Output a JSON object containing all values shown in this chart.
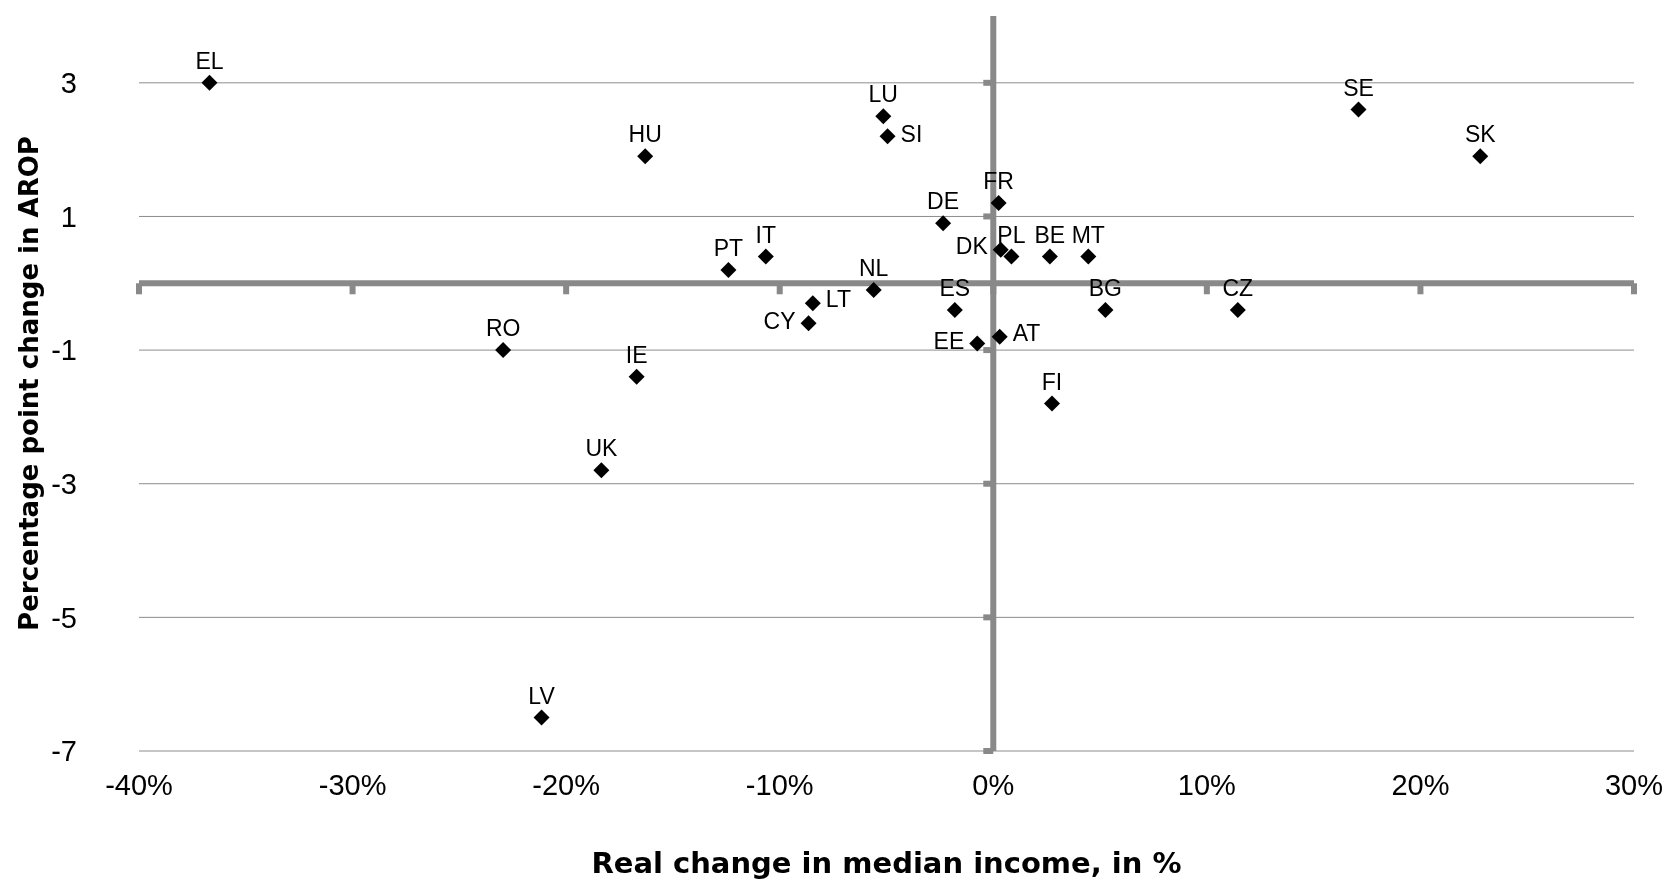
{
  "chart_data": {
    "type": "scatter",
    "xlabel": "Real change in median income, in %",
    "ylabel": "Percentage point change in AROP",
    "xlim": [
      -40,
      30
    ],
    "xticks": [
      {
        "value": -40,
        "label": "-40%"
      },
      {
        "value": -30,
        "label": "-30%"
      },
      {
        "value": -20,
        "label": "-20%"
      },
      {
        "value": -10,
        "label": "-10%"
      },
      {
        "value": 0,
        "label": "0%"
      },
      {
        "value": 10,
        "label": "10%"
      },
      {
        "value": 20,
        "label": "20%"
      },
      {
        "value": 30,
        "label": "30%"
      }
    ],
    "ylim": [
      -7,
      4
    ],
    "yticks": [
      3,
      1,
      -1,
      -3,
      -5,
      -7
    ],
    "grid": "y",
    "marker": "diamond",
    "series": [
      {
        "color": "#000000",
        "x": [
          -36.7,
          -16.3,
          -5.15,
          -4.95,
          -2.35,
          0.25,
          0.35,
          0.85,
          2.65,
          4.45,
          -12.4,
          -10.65,
          -5.6,
          -8.45,
          -8.65,
          -1.8,
          -0.75,
          0.3,
          5.25,
          11.45,
          2.75,
          -22.95,
          -16.7,
          -18.35,
          -21.15,
          17.1,
          22.8
        ],
        "values": [
          3.0,
          1.9,
          2.5,
          2.2,
          0.9,
          1.2,
          0.5,
          0.4,
          0.4,
          0.4,
          0.2,
          0.4,
          -0.1,
          -0.3,
          -0.6,
          -0.4,
          -0.9,
          -0.8,
          -0.4,
          -0.4,
          -1.8,
          -1.0,
          -1.4,
          -2.8,
          -6.5,
          2.6,
          1.9
        ]
      }
    ],
    "annotations": [
      {
        "text": "EL",
        "x": -36.7,
        "y": 3.0
      },
      {
        "text": "HU",
        "x": -16.3,
        "y": 1.9
      },
      {
        "text": "LU",
        "x": -5.15,
        "y": 2.5
      },
      {
        "text": "SI",
        "x": -4.95,
        "y": 2.2
      },
      {
        "text": "DE",
        "x": -2.35,
        "y": 0.9
      },
      {
        "text": "FR",
        "x": 0.25,
        "y": 1.2
      },
      {
        "text": "DK",
        "x": 0.35,
        "y": 0.5
      },
      {
        "text": "PL",
        "x": 0.85,
        "y": 0.4
      },
      {
        "text": "BE",
        "x": 2.65,
        "y": 0.4
      },
      {
        "text": "MT",
        "x": 4.45,
        "y": 0.4
      },
      {
        "text": "PT",
        "x": -12.4,
        "y": 0.2
      },
      {
        "text": "IT",
        "x": -10.65,
        "y": 0.4
      },
      {
        "text": "NL",
        "x": -5.6,
        "y": -0.1
      },
      {
        "text": "LT",
        "x": -8.45,
        "y": -0.3
      },
      {
        "text": "CY",
        "x": -8.65,
        "y": -0.6
      },
      {
        "text": "ES",
        "x": -1.8,
        "y": -0.4
      },
      {
        "text": "EE",
        "x": -0.75,
        "y": -0.9
      },
      {
        "text": "AT",
        "x": 0.3,
        "y": -0.8
      },
      {
        "text": "BG",
        "x": 5.25,
        "y": -0.4
      },
      {
        "text": "CZ",
        "x": 11.45,
        "y": -0.4
      },
      {
        "text": "FI",
        "x": 2.75,
        "y": -1.8
      },
      {
        "text": "RO",
        "x": -22.95,
        "y": -1.0
      },
      {
        "text": "IE",
        "x": -16.7,
        "y": -1.4
      },
      {
        "text": "UK",
        "x": -18.35,
        "y": -2.8
      },
      {
        "text": "LV",
        "x": -21.15,
        "y": -6.5
      },
      {
        "text": "SE",
        "x": 17.1,
        "y": 2.6
      },
      {
        "text": "SK",
        "x": 22.8,
        "y": 1.9
      }
    ]
  }
}
